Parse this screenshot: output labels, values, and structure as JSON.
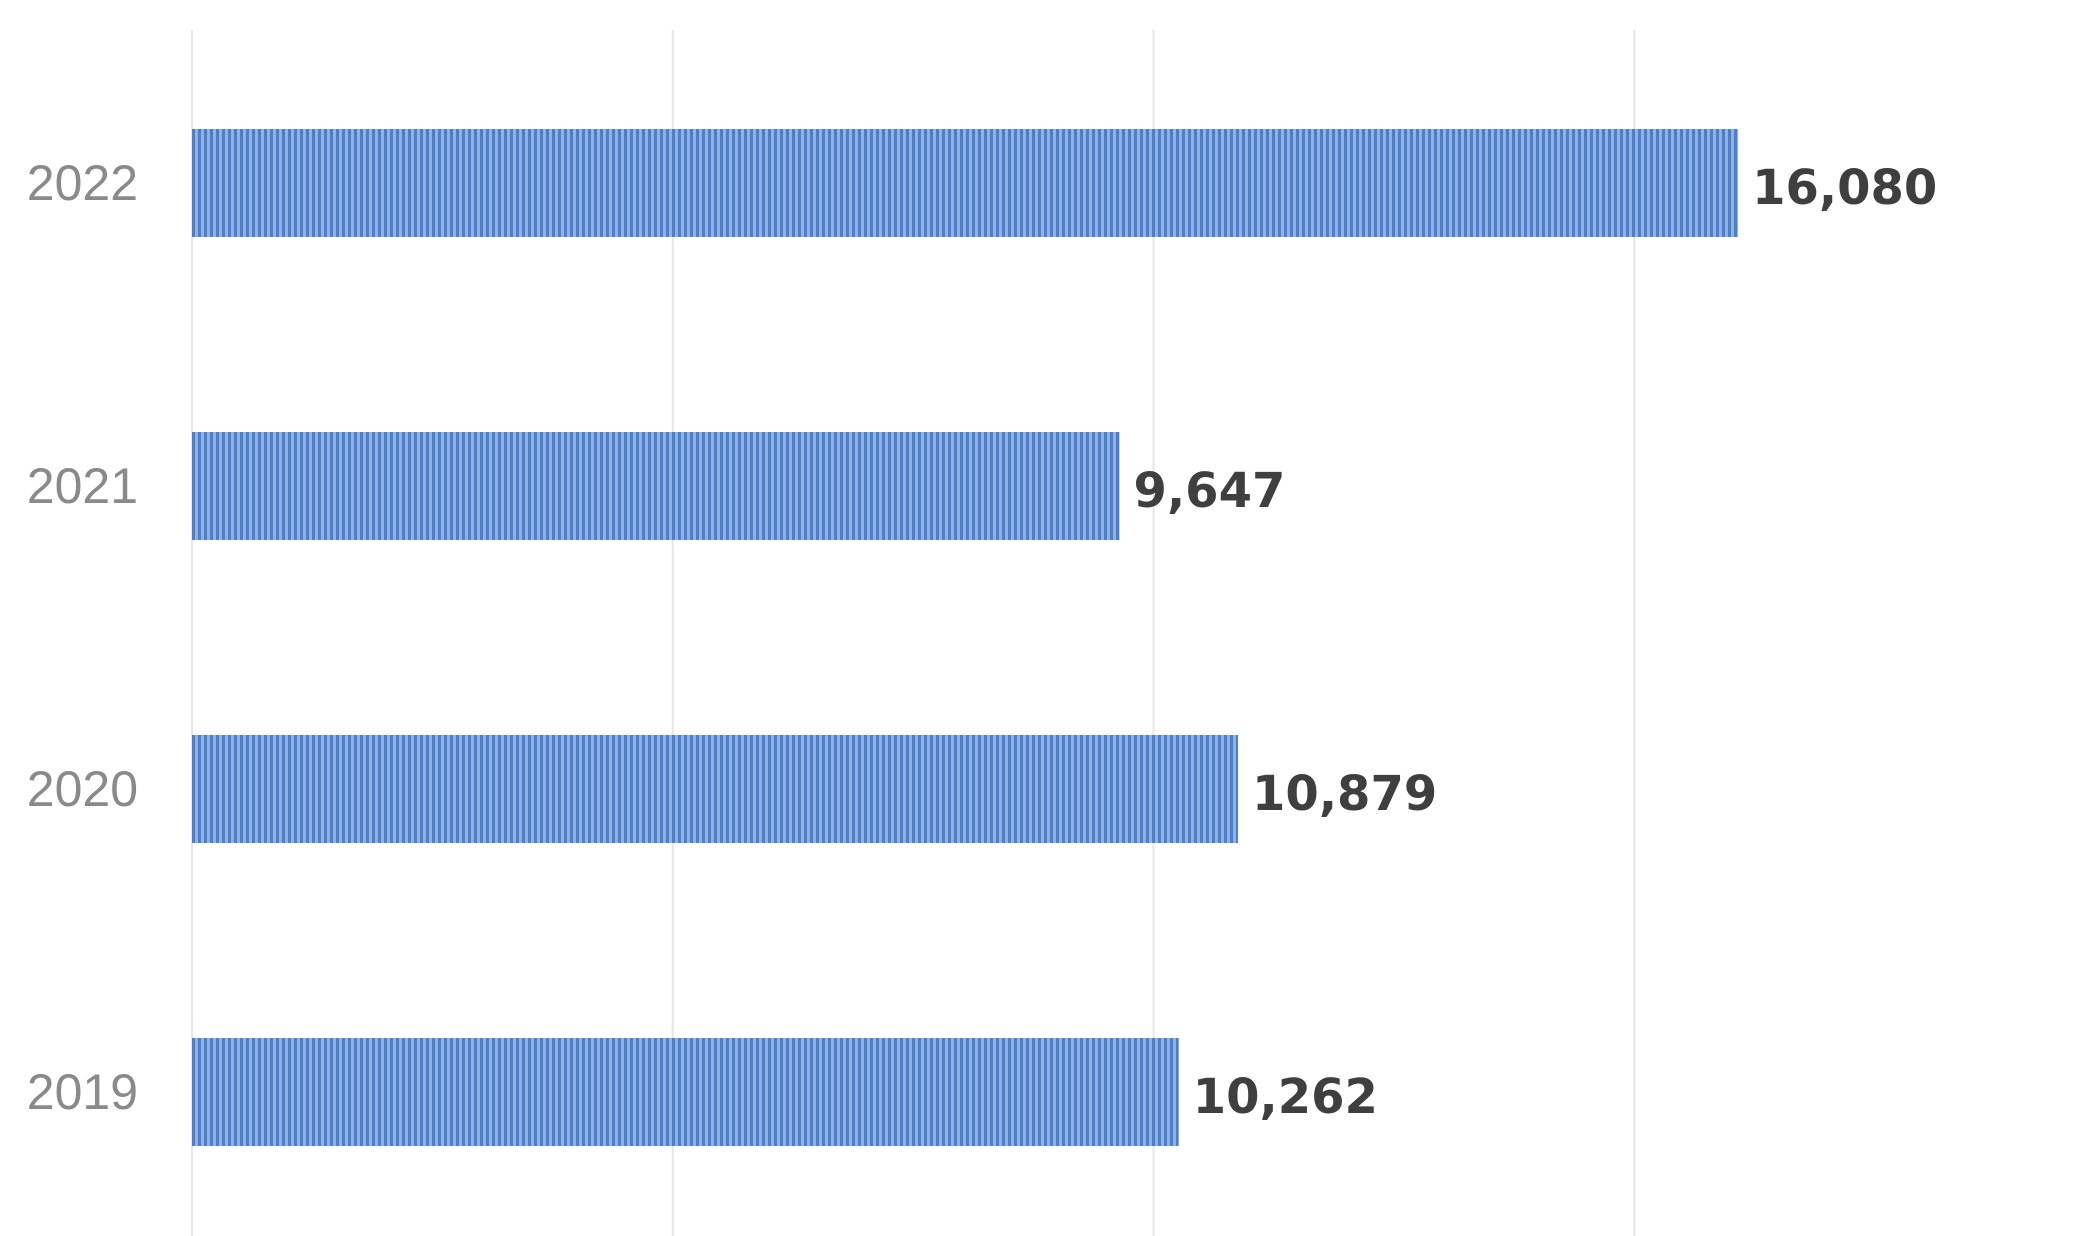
{
  "chart_data": {
    "type": "bar",
    "orientation": "horizontal",
    "categories": [
      "2022",
      "2021",
      "2020",
      "2019"
    ],
    "values": [
      16080,
      9647,
      10879,
      10262
    ],
    "value_labels": [
      "16,080",
      "9,647",
      "10,879",
      "10,262"
    ],
    "title": "",
    "xlabel": "",
    "ylabel": "",
    "xlim": [
      0,
      20000
    ],
    "grid": true,
    "legend": "none",
    "colors": {
      "bar_fill": "#8fb3e6",
      "bar_stripe": "#4f7ec8",
      "gridline": "#e6e6e6",
      "category_text": "#8a8a8a",
      "value_text": "#3f3f3f"
    }
  }
}
